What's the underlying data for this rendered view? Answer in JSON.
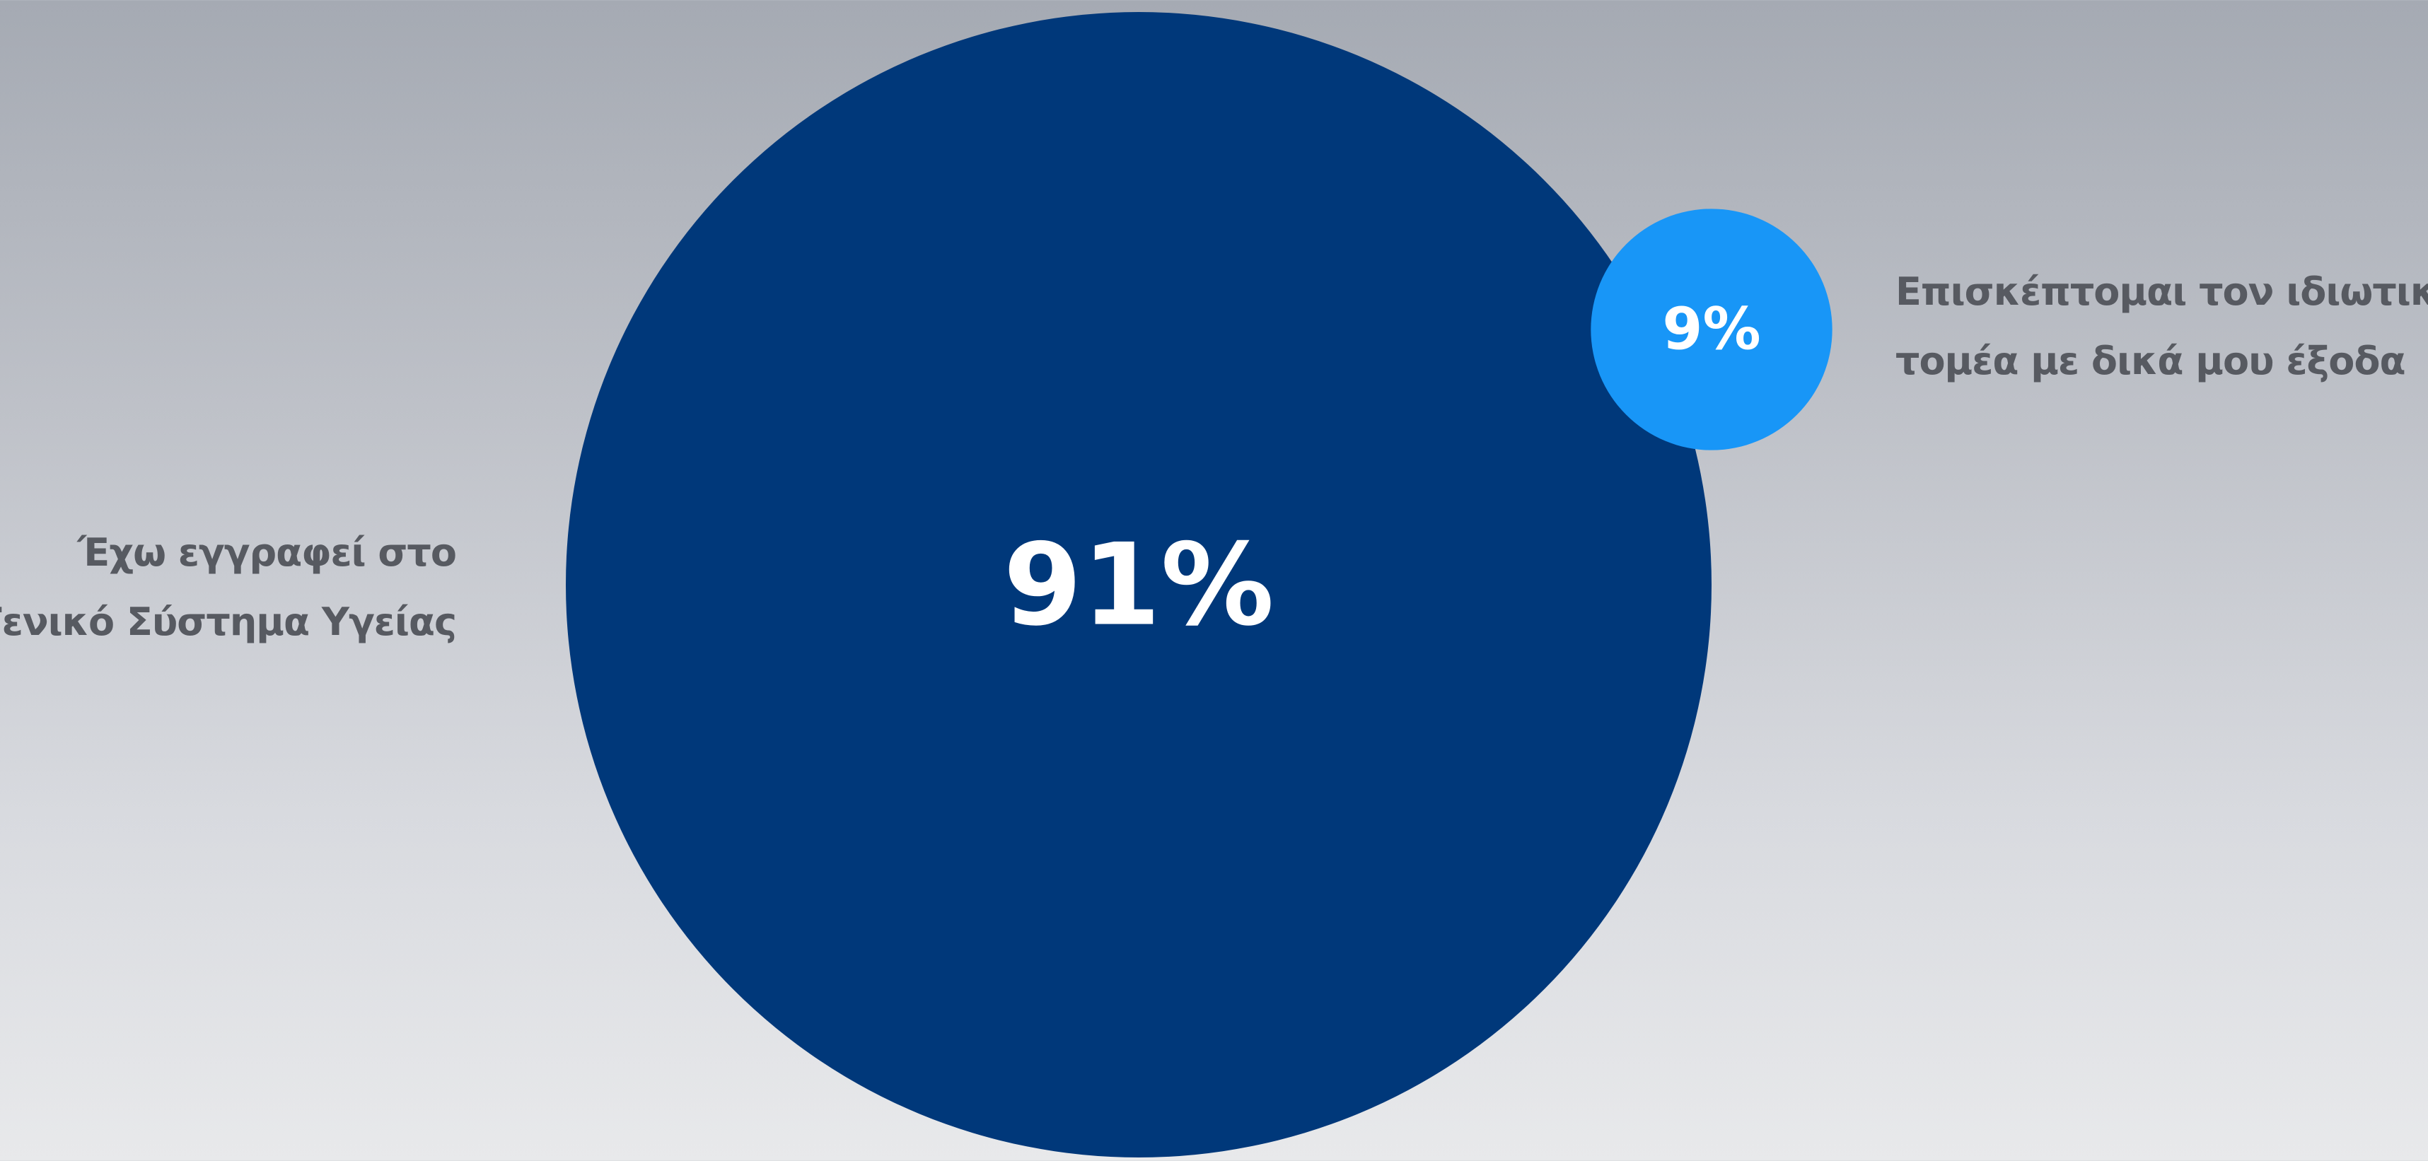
{
  "chart_data": {
    "type": "bubble",
    "unit": "%",
    "series": [
      {
        "label_lines": [
          "Έχω εγγραφεί στο",
          "Γενικό Σύστημα Υγείας"
        ],
        "value": 91,
        "value_label": "91%",
        "color": "#00387a"
      },
      {
        "label_lines": [
          "Επισκέπτομαι τον ιδιωτικό",
          "τομέα με δικά μου έξοδα"
        ],
        "value": 9,
        "value_label": "9%",
        "color": "#1896f7"
      }
    ],
    "text_color": "#ffffff",
    "label_color": "#575a61"
  }
}
